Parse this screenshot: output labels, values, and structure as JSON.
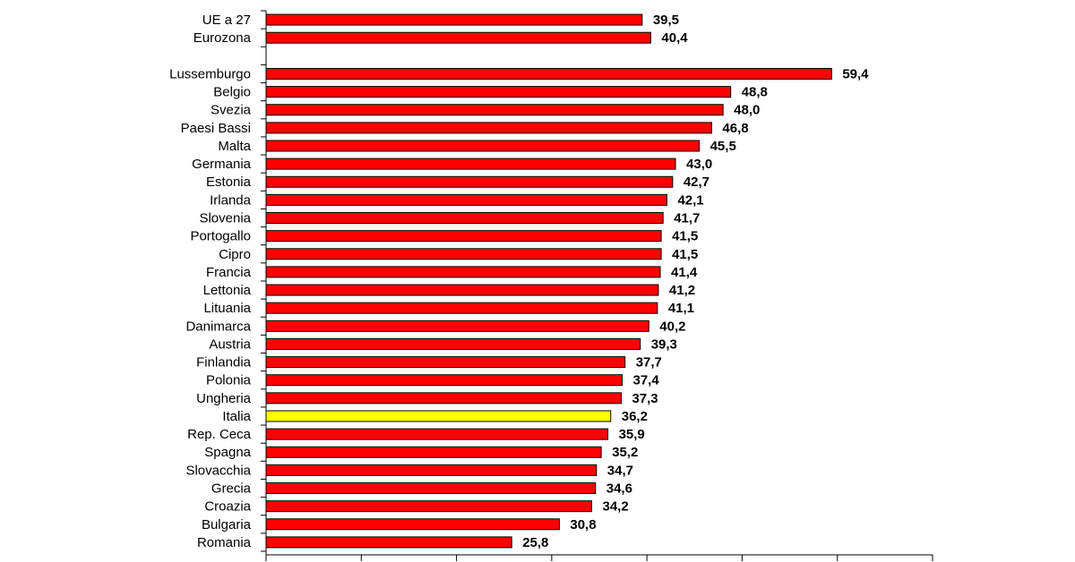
{
  "chart_data": {
    "type": "hbar",
    "categories": [
      "UE a 27",
      "Eurozona",
      null,
      "Lussemburgo",
      "Belgio",
      "Svezia",
      "Paesi Bassi",
      "Malta",
      "Germania",
      "Estonia",
      "Irlanda",
      "Slovenia",
      "Portogallo",
      "Cipro",
      "Francia",
      "Lettonia",
      "Lituania",
      "Danimarca",
      "Austria",
      "Finlandia",
      "Polonia",
      "Ungheria",
      "Italia",
      "Rep. Ceca",
      "Spagna",
      "Slovacchia",
      "Grecia",
      "Croazia",
      "Bulgaria",
      "Romania"
    ],
    "values": [
      39.5,
      40.4,
      null,
      59.4,
      48.8,
      48.0,
      46.8,
      45.5,
      43.0,
      42.7,
      42.1,
      41.7,
      41.5,
      41.5,
      41.4,
      41.2,
      41.1,
      40.2,
      39.3,
      37.7,
      37.4,
      37.3,
      36.2,
      35.9,
      35.2,
      34.7,
      34.6,
      34.2,
      30.8,
      25.8
    ],
    "value_labels": [
      "39,5",
      "40,4",
      null,
      "59,4",
      "48,8",
      "48,0",
      "46,8",
      "45,5",
      "43,0",
      "42,7",
      "42,1",
      "41,7",
      "41,5",
      "41,5",
      "41,4",
      "41,2",
      "41,1",
      "40,2",
      "39,3",
      "37,7",
      "37,4",
      "37,3",
      "36,2",
      "35,9",
      "35,2",
      "34,7",
      "34,6",
      "34,2",
      "30,8",
      "25,8"
    ],
    "colors": [
      "#ff0000",
      "#ff0000",
      null,
      "#ff0000",
      "#ff0000",
      "#ff0000",
      "#ff0000",
      "#ff0000",
      "#ff0000",
      "#ff0000",
      "#ff0000",
      "#ff0000",
      "#ff0000",
      "#ff0000",
      "#ff0000",
      "#ff0000",
      "#ff0000",
      "#ff0000",
      "#ff0000",
      "#ff0000",
      "#ff0000",
      "#ff0000",
      "#ffff00",
      "#ff0000",
      "#ff0000",
      "#ff0000",
      "#ff0000",
      "#ff0000",
      "#ff0000",
      "#ff0000"
    ],
    "xlim": [
      0,
      70
    ],
    "xticks": [
      0,
      10,
      20,
      30,
      40,
      50,
      60,
      70
    ]
  }
}
